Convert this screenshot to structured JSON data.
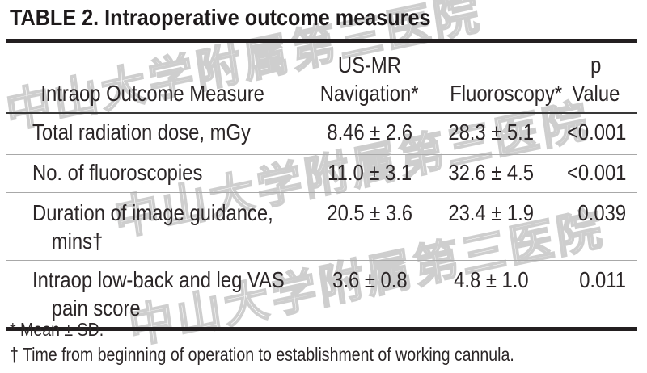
{
  "page": {
    "title": "TABLE 2. Intraoperative outcome measures"
  },
  "watermark": {
    "text": "中山大学附属第三医院",
    "color": "#bbbbbb"
  },
  "table": {
    "header": {
      "measure": "Intraop Outcome Measure",
      "col2_line1": "US-MR",
      "col2_line2": "Navigation*",
      "col3": "Fluoroscopy*",
      "col4_line1": "p",
      "col4_line2": "Value"
    },
    "rows": [
      {
        "measure": "Total radiation dose, mGy",
        "us_mr_navigation": "8.46 ± 2.6",
        "fluoroscopy": "28.3 ± 5.1",
        "p_value": "<0.001"
      },
      {
        "measure": "No. of fluoroscopies",
        "us_mr_navigation": "11.0 ± 3.1",
        "fluoroscopy": "32.6 ± 4.5",
        "p_value": "<0.001"
      },
      {
        "measure": "Duration of image guidance, mins†",
        "us_mr_navigation": "20.5 ± 3.6",
        "fluoroscopy": "23.4 ± 1.9",
        "p_value": "0.039"
      },
      {
        "measure": "Intraop low-back and leg VAS pain score",
        "us_mr_navigation": "3.6 ± 0.8",
        "fluoroscopy": "4.8 ± 1.0",
        "p_value": "0.011"
      }
    ]
  },
  "footnotes": [
    "* Mean ± SD.",
    "† Time from beginning of operation to establishment of working cannula."
  ],
  "colors": {
    "text": "#2b2627",
    "rule_heavy": "#231f20",
    "rule_medium": "#383838",
    "rule_light": "#a8a8a8"
  }
}
